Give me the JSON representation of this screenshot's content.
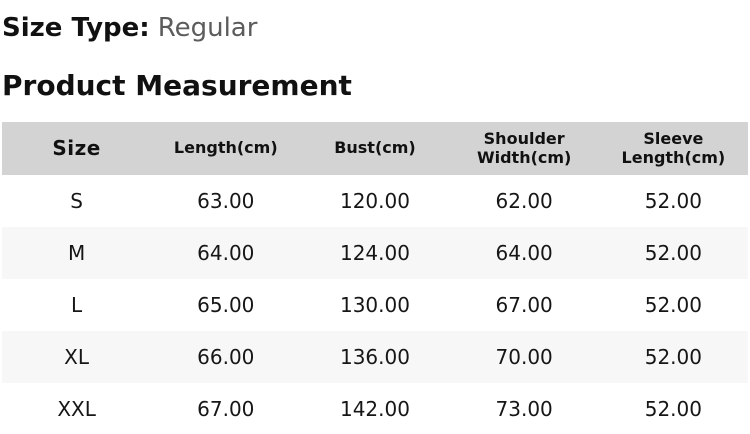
{
  "header": {
    "size_type_label": "Size Type:",
    "size_type_value": "Regular",
    "section_title": "Product Measurement"
  },
  "table": {
    "columns": [
      "Size",
      "Length(cm)",
      "Bust(cm)",
      "Shoulder Width(cm)",
      "Sleeve Length(cm)"
    ],
    "rows": [
      {
        "size": "S",
        "length": "63.00",
        "bust": "120.00",
        "shoulder": "62.00",
        "sleeve": "52.00"
      },
      {
        "size": "M",
        "length": "64.00",
        "bust": "124.00",
        "shoulder": "64.00",
        "sleeve": "52.00"
      },
      {
        "size": "L",
        "length": "65.00",
        "bust": "130.00",
        "shoulder": "67.00",
        "sleeve": "52.00"
      },
      {
        "size": "XL",
        "length": "66.00",
        "bust": "136.00",
        "shoulder": "70.00",
        "sleeve": "52.00"
      },
      {
        "size": "XXL",
        "length": "67.00",
        "bust": "142.00",
        "shoulder": "73.00",
        "sleeve": "52.00"
      }
    ]
  },
  "colors": {
    "header_row_bg": "#d3d3d3",
    "zebra_row_bg": "#f7f7f7",
    "text_primary": "#111111",
    "size_type_value_gray": "#5c5c5c",
    "page_bg": "#ffffff"
  }
}
